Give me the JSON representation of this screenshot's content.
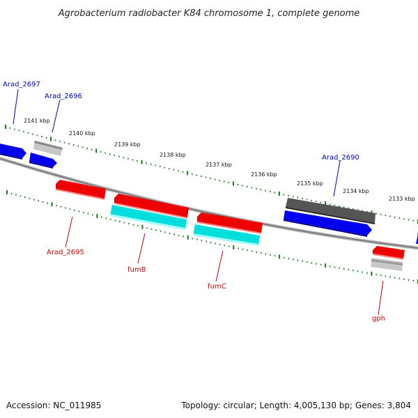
{
  "title": "Agrobacterium radiobacter K84 chromosome 1, complete genome",
  "footer": {
    "accession": "Accession: NC_011985",
    "summary": "Topology: circular; Length: 4,005,130 bp; Genes: 3,804"
  },
  "colors": {
    "backbone": "#8c8c8c",
    "tick": "#1a7a1a",
    "blue_gene": "#0000ee",
    "red_gene": "#ee0000",
    "cyan_gene": "#00dddd",
    "gray_gene": "#bbbbbb",
    "dark_gene": "#555555",
    "label_blue": "#0000cc",
    "label_red": "#cc0000"
  },
  "kbp_labels": [
    "2141 kbp",
    "2140 kbp",
    "2139 kbp",
    "2138 kbp",
    "2137 kbp",
    "2136 kbp",
    "2135 kbp",
    "2134 kbp",
    "2133 kbp"
  ],
  "gene_labels": {
    "arad_2697": "Arad_2697",
    "arad_2696": "Arad_2696",
    "arad_2690": "Arad_2690",
    "arad_2695": "Arad_2695",
    "fumB": "fumB",
    "fumC": "fumC",
    "gph": "gph"
  }
}
